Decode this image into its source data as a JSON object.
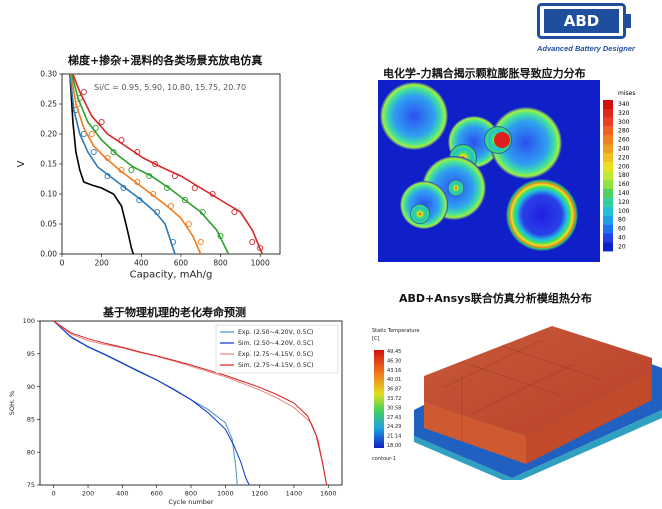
{
  "logo": {
    "text": "ABD",
    "subtitle": "Advanced Battery Designer",
    "color": "#1f4e9c"
  },
  "titles": {
    "p1": "梯度+掺杂+混料的各类场景充放电仿真",
    "p2": "电化学-力耦合揭示颗粒膨胀导致应力分布",
    "p3": "基于物理机理的老化寿命预测",
    "p4": "ABD+Ansys联合仿真分析模组热分布"
  },
  "chart_data": [
    {
      "type": "line",
      "title": "梯度+掺杂+混料的各类场景充放电仿真",
      "xlabel": "Capacity,  mAh/g",
      "ylabel": "V",
      "xlim": [
        0,
        1100
      ],
      "ylim": [
        0,
        0.3
      ],
      "xticks": [
        0,
        200,
        400,
        600,
        800,
        1000
      ],
      "yticks": [
        0.0,
        0.05,
        0.1,
        0.15,
        0.2,
        0.25,
        0.3
      ],
      "annotation": "Si/C = 0.95, 5.90, 10.80, 15.75, 20.70",
      "series": [
        {
          "color": "#000000",
          "x": [
            40,
            55,
            70,
            90,
            110,
            150,
            200,
            260,
            300,
            330,
            350,
            360
          ],
          "y": [
            0.3,
            0.22,
            0.17,
            0.14,
            0.12,
            0.115,
            0.11,
            0.1,
            0.08,
            0.04,
            0.01,
            0.0
          ],
          "markers": []
        },
        {
          "color": "#2a7ab8",
          "x": [
            40,
            60,
            90,
            130,
            180,
            240,
            320,
            400,
            470,
            520,
            550,
            570
          ],
          "y": [
            0.3,
            0.24,
            0.2,
            0.17,
            0.145,
            0.13,
            0.11,
            0.09,
            0.07,
            0.05,
            0.02,
            0.0
          ],
          "markers": [
            [
              70,
              0.24
            ],
            [
              110,
              0.2
            ],
            [
              160,
              0.17
            ],
            [
              230,
              0.13
            ],
            [
              310,
              0.11
            ],
            [
              390,
              0.09
            ],
            [
              480,
              0.07
            ],
            [
              560,
              0.02
            ]
          ]
        },
        {
          "color": "#f07c1e",
          "x": [
            45,
            70,
            110,
            160,
            220,
            290,
            370,
            450,
            530,
            600,
            660,
            700
          ],
          "y": [
            0.3,
            0.25,
            0.21,
            0.18,
            0.16,
            0.14,
            0.12,
            0.1,
            0.08,
            0.06,
            0.03,
            0.0
          ],
          "markers": [
            [
              80,
              0.25
            ],
            [
              150,
              0.2
            ],
            [
              230,
              0.16
            ],
            [
              300,
              0.14
            ],
            [
              380,
              0.12
            ],
            [
              460,
              0.1
            ],
            [
              550,
              0.08
            ],
            [
              640,
              0.05
            ],
            [
              700,
              0.02
            ]
          ]
        },
        {
          "color": "#2ca02c",
          "x": [
            50,
            80,
            130,
            200,
            280,
            360,
            450,
            540,
            620,
            700,
            780,
            840
          ],
          "y": [
            0.3,
            0.26,
            0.22,
            0.19,
            0.165,
            0.145,
            0.13,
            0.11,
            0.09,
            0.07,
            0.04,
            0.0
          ],
          "markers": [
            [
              90,
              0.26
            ],
            [
              170,
              0.21
            ],
            [
              260,
              0.17
            ],
            [
              350,
              0.14
            ],
            [
              440,
              0.13
            ],
            [
              530,
              0.11
            ],
            [
              620,
              0.09
            ],
            [
              710,
              0.07
            ],
            [
              800,
              0.03
            ]
          ]
        },
        {
          "color": "#d62728",
          "x": [
            55,
            90,
            150,
            230,
            320,
            410,
            500,
            600,
            700,
            800,
            900,
            960,
            1010
          ],
          "y": [
            0.3,
            0.27,
            0.23,
            0.2,
            0.18,
            0.16,
            0.145,
            0.13,
            0.11,
            0.09,
            0.07,
            0.04,
            0.0
          ],
          "markers": [
            [
              110,
              0.27
            ],
            [
              200,
              0.22
            ],
            [
              300,
              0.19
            ],
            [
              380,
              0.17
            ],
            [
              470,
              0.15
            ],
            [
              570,
              0.13
            ],
            [
              670,
              0.11
            ],
            [
              760,
              0.1
            ],
            [
              870,
              0.07
            ],
            [
              960,
              0.02
            ],
            [
              1000,
              0.01
            ]
          ]
        }
      ]
    },
    {
      "type": "line",
      "title": "基于物理机理的老化寿命预测",
      "xlabel": "Cycle number",
      "ylabel": "SOH, %",
      "xlim": [
        -80,
        1680
      ],
      "ylim": [
        75,
        100
      ],
      "xticks": [
        0,
        200,
        400,
        600,
        800,
        1000,
        1200,
        1400,
        1600
      ],
      "yticks": [
        75,
        80,
        85,
        90,
        95,
        100
      ],
      "legend": {
        "placement": "top-right",
        "entries": [
          {
            "label": "Exp. (2.50~4.20V, 0.5C)",
            "color": "#4a90c4"
          },
          {
            "label": "Sim. (2.50~4.20V, 0.5C)",
            "color": "#1030d0"
          },
          {
            "label": "Exp. (2.75~4.15V, 0.5C)",
            "color": "#f08080"
          },
          {
            "label": "Sim. (2.75~4.15V, 0.5C)",
            "color": "#d42020"
          }
        ]
      },
      "series": [
        {
          "name": "Exp. (2.50~4.20V, 0.5C)",
          "color": "#4a90c4",
          "x": [
            0,
            100,
            200,
            300,
            400,
            500,
            600,
            700,
            800,
            900,
            1000,
            1040,
            1060,
            1070
          ],
          "y": [
            100,
            97.5,
            96,
            94.8,
            93.5,
            92.2,
            91,
            89.5,
            88,
            86.5,
            84.5,
            82,
            78,
            75
          ]
        },
        {
          "name": "Sim. (2.50~4.20V, 0.5C)",
          "color": "#1030d0",
          "x": [
            0,
            100,
            200,
            300,
            400,
            500,
            600,
            700,
            800,
            900,
            1000,
            1050,
            1090,
            1120,
            1140
          ],
          "y": [
            100,
            97.6,
            96.1,
            94.9,
            93.6,
            92.3,
            91.0,
            89.6,
            88.0,
            86.0,
            83.5,
            81.0,
            78.5,
            76.0,
            75.0
          ]
        },
        {
          "name": "Exp. (2.75~4.15V, 0.5C)",
          "color": "#f08080",
          "x": [
            0,
            100,
            200,
            300,
            400,
            500,
            600,
            700,
            800,
            900,
            1000,
            1100,
            1200,
            1300,
            1400,
            1500,
            1540,
            1570,
            1590
          ],
          "y": [
            100,
            98.0,
            97.0,
            96.4,
            95.9,
            95.2,
            94.6,
            93.9,
            93.1,
            92.3,
            91.5,
            90.5,
            89.5,
            88.3,
            86.8,
            84.5,
            82.0,
            78.0,
            75.0
          ]
        },
        {
          "name": "Sim. (2.75~4.15V, 0.5C)",
          "color": "#d42020",
          "x": [
            0,
            100,
            200,
            300,
            400,
            500,
            600,
            700,
            800,
            900,
            1000,
            1100,
            1200,
            1300,
            1400,
            1480,
            1530,
            1565,
            1590
          ],
          "y": [
            100,
            98.2,
            97.3,
            96.6,
            96.0,
            95.3,
            94.7,
            94.0,
            93.3,
            92.5,
            91.7,
            90.8,
            89.9,
            88.8,
            87.5,
            85.5,
            82.5,
            78.5,
            75.0
          ]
        }
      ]
    }
  ],
  "stress_map": {
    "colorbar_title": "mises",
    "colorbar_ticks": [
      "340",
      "320",
      "300",
      "280",
      "260",
      "240",
      "220",
      "200",
      "180",
      "160",
      "140",
      "120",
      "100",
      "80",
      "60",
      "40",
      "20"
    ]
  },
  "thermal_map": {
    "colorbar_title": "Static Temperature",
    "colorbar_unit": "[C]",
    "colorbar_ticks": [
      "49.45",
      "46.30",
      "43.16",
      "40.01",
      "36.87",
      "33.72",
      "30.58",
      "27.43",
      "24.29",
      "21.14",
      "18.00"
    ],
    "colorbar_footer": "contour-1"
  }
}
